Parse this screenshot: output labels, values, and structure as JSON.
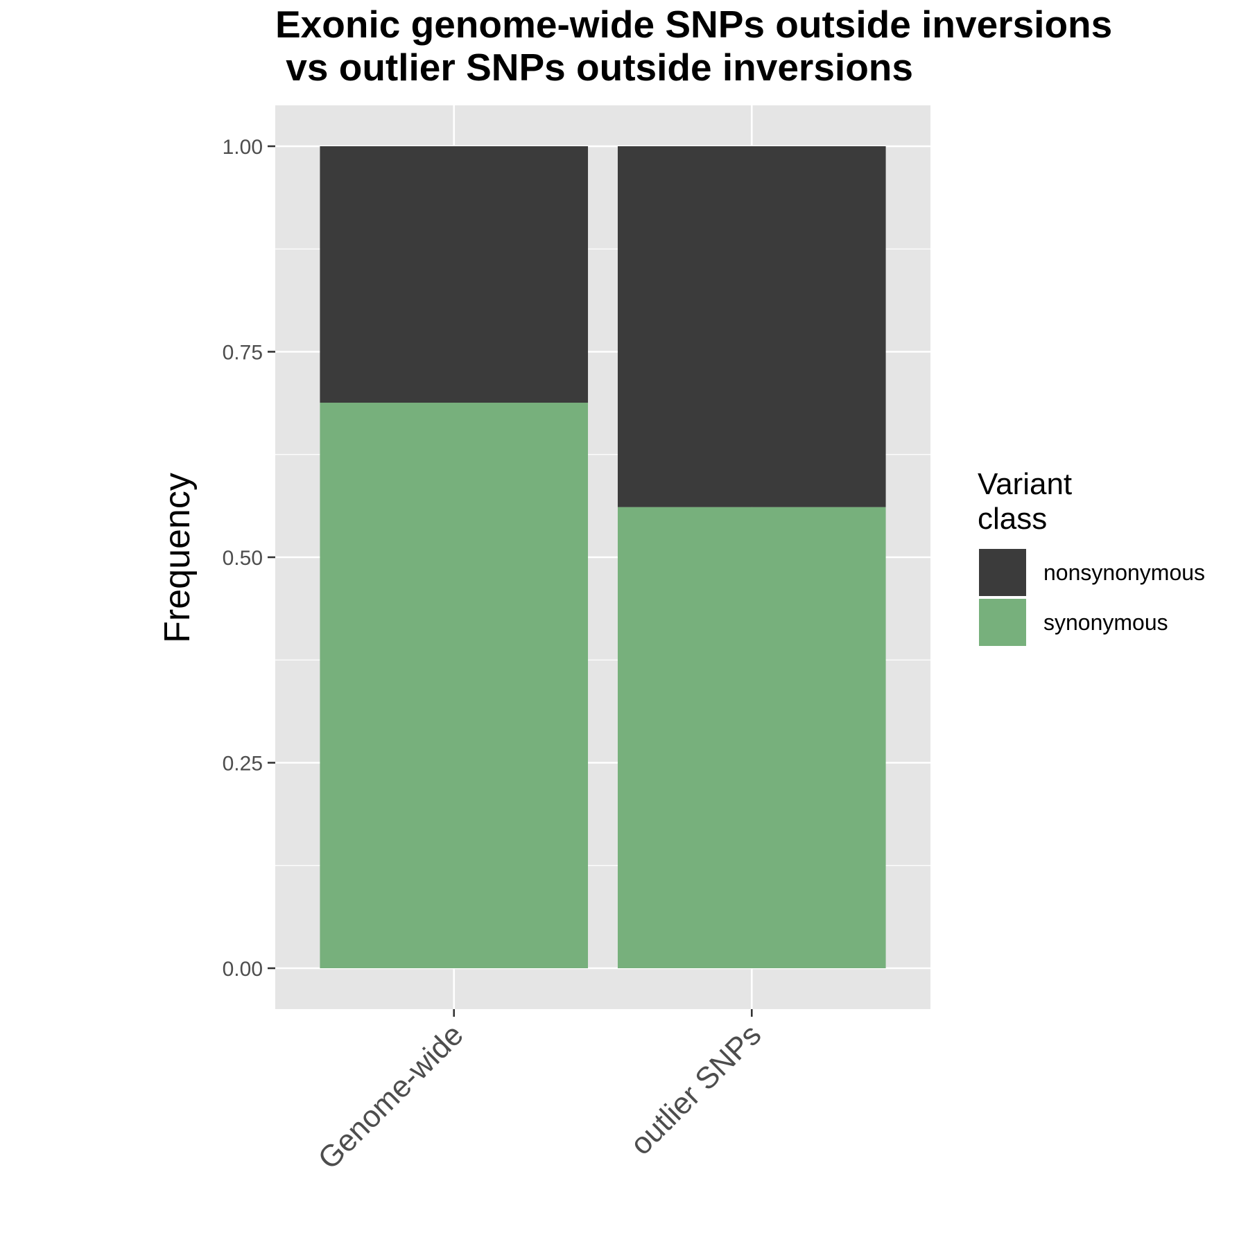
{
  "chart_data": {
    "type": "bar",
    "stacked": true,
    "title_lines": [
      "Exonic genome-wide SNPs outside inversions",
      " vs outlier SNPs outside inversions"
    ],
    "xlabel": "",
    "ylabel": "Frequency",
    "ylim": [
      0,
      1
    ],
    "y_ticks": [
      "0.00",
      "0.25",
      "0.50",
      "0.75",
      "1.00"
    ],
    "grid": true,
    "legend_position": "right",
    "categories": [
      "Genome-wide",
      "outlier SNPs"
    ],
    "series": [
      {
        "name": "synonymous",
        "values": [
          0.688,
          0.561
        ],
        "color": "#77b07c"
      },
      {
        "name": "nonsynonymous",
        "values": [
          0.312,
          0.439
        ],
        "color": "#3b3b3b"
      }
    ],
    "legend": {
      "title_lines": [
        "Variant",
        "class"
      ],
      "items": [
        {
          "label": "nonsynonymous",
          "color": "#3b3b3b"
        },
        {
          "label": "synonymous",
          "color": "#77b07c"
        }
      ]
    },
    "panel_background": "#e5e5e5",
    "grid_color": "#ffffff"
  }
}
